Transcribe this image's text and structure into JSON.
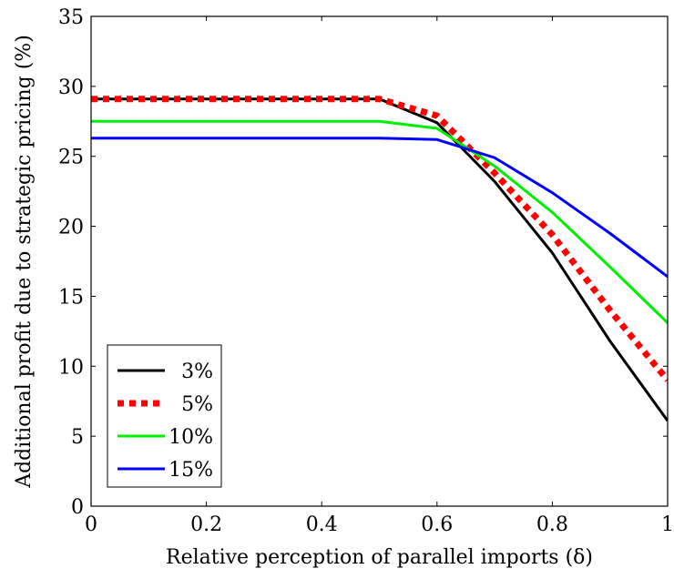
{
  "chart_data": {
    "type": "line",
    "xlabel": "Relative perception of parallel imports (δ)",
    "ylabel": "Additional profit due to strategic pricing (%)",
    "xlim": [
      0,
      1
    ],
    "ylim": [
      0,
      35
    ],
    "xticks": [
      0,
      0.2,
      0.4,
      0.6,
      0.8,
      1
    ],
    "xtick_labels": [
      "0",
      "0.2",
      "0.4",
      "0.6",
      "0.8",
      "1"
    ],
    "yticks": [
      0,
      5,
      10,
      15,
      20,
      25,
      30,
      35
    ],
    "ytick_labels": [
      "0",
      "5",
      "10",
      "15",
      "20",
      "25",
      "30",
      "35"
    ],
    "grid": false,
    "legend_position": "bottom-left",
    "x": [
      0,
      0.1,
      0.2,
      0.3,
      0.4,
      0.5,
      0.6,
      0.7,
      0.8,
      0.9,
      1.0
    ],
    "series": [
      {
        "name": "3%",
        "color": "#000000",
        "style": "solid",
        "values": [
          29.1,
          29.1,
          29.1,
          29.1,
          29.1,
          29.1,
          27.4,
          23.2,
          18.1,
          11.8,
          6.1
        ]
      },
      {
        "name": "5%",
        "color": "#ff0000",
        "style": "dotted",
        "values": [
          29.1,
          29.1,
          29.1,
          29.1,
          29.1,
          29.1,
          27.9,
          23.8,
          19.4,
          14.0,
          9.0
        ]
      },
      {
        "name": "10%",
        "color": "#00ee00",
        "style": "solid",
        "values": [
          27.5,
          27.5,
          27.5,
          27.5,
          27.5,
          27.5,
          27.0,
          24.3,
          21.0,
          17.1,
          13.1
        ]
      },
      {
        "name": "15%",
        "color": "#0000ff",
        "style": "solid",
        "values": [
          26.3,
          26.3,
          26.3,
          26.3,
          26.3,
          26.3,
          26.2,
          24.9,
          22.4,
          19.5,
          16.4
        ]
      }
    ]
  }
}
